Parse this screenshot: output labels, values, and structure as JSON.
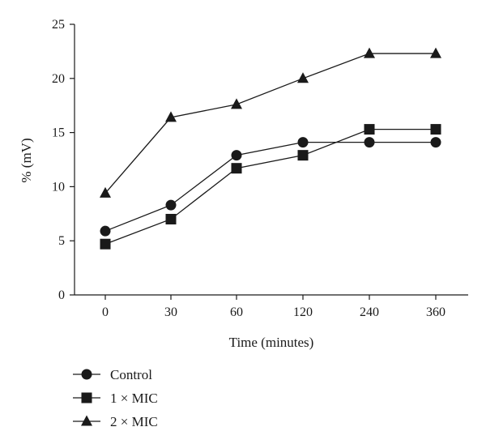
{
  "chart_data": {
    "type": "line",
    "categories": [
      "0",
      "30",
      "60",
      "120",
      "240",
      "360"
    ],
    "xlabel": "Time (minutes)",
    "ylabel": "% (mV)",
    "ylim": [
      0,
      25
    ],
    "yticks": [
      0,
      5,
      10,
      15,
      20,
      25
    ],
    "grid": false,
    "legend_position": "bottom-left",
    "series": [
      {
        "name": "Control",
        "marker": "circle",
        "values": [
          5.9,
          8.3,
          12.9,
          14.1,
          14.1,
          14.1
        ]
      },
      {
        "name": "1 × MIC",
        "marker": "square",
        "values": [
          4.7,
          7.0,
          11.7,
          12.9,
          15.3,
          15.3
        ]
      },
      {
        "name": "2 × MIC",
        "marker": "triangle",
        "values": [
          9.4,
          16.4,
          17.6,
          20.0,
          22.3,
          22.3
        ]
      }
    ]
  },
  "colors": {
    "line": "#1a1a1a",
    "marker": "#1a1a1a",
    "axis": "#1a1a1a"
  }
}
